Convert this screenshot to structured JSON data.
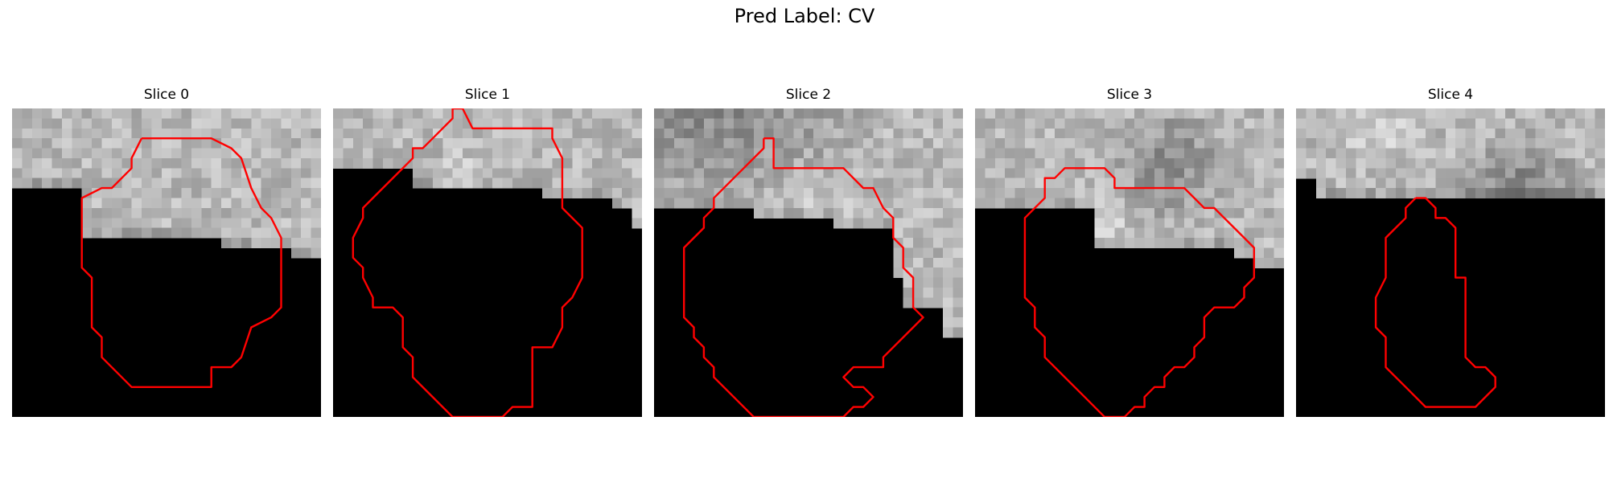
{
  "figure": {
    "title": "Pred Label: CV",
    "contour_color": "#ff0000",
    "panels": [
      {
        "title": "Slice 0",
        "seed": 11,
        "mask_cols": [
          8,
          8,
          8,
          8,
          8,
          8,
          8,
          13,
          13,
          13,
          13,
          13,
          13,
          13,
          13,
          13,
          13,
          13,
          13,
          13,
          13,
          14,
          14,
          14,
          14,
          14,
          14,
          14,
          15,
          15,
          15
        ],
        "blobs": [],
        "contour": [
          [
            13,
            3
          ],
          [
            20,
            3
          ],
          [
            22,
            4
          ],
          [
            23,
            5
          ],
          [
            24,
            8
          ],
          [
            25,
            10
          ],
          [
            26,
            11
          ],
          [
            27,
            13
          ],
          [
            27,
            20
          ],
          [
            26,
            21
          ],
          [
            24,
            22
          ],
          [
            23,
            25
          ],
          [
            22,
            26
          ],
          [
            20,
            26
          ],
          [
            20,
            28
          ],
          [
            12,
            28
          ],
          [
            9,
            25
          ],
          [
            9,
            23
          ],
          [
            8,
            22
          ],
          [
            8,
            17
          ],
          [
            7,
            16
          ],
          [
            7,
            9
          ],
          [
            9,
            8
          ],
          [
            10,
            8
          ],
          [
            12,
            6
          ],
          [
            12,
            5
          ],
          [
            13,
            3
          ]
        ]
      },
      {
        "title": "Slice 1",
        "seed": 23,
        "mask_cols": [
          6,
          6,
          6,
          6,
          6,
          6,
          6,
          6,
          8,
          8,
          8,
          8,
          8,
          8,
          8,
          8,
          8,
          8,
          8,
          8,
          8,
          9,
          9,
          9,
          9,
          9,
          9,
          9,
          10,
          10,
          12
        ],
        "blobs": [
          {
            "x": 13,
            "y": 8,
            "r": 5,
            "d": 35
          }
        ],
        "contour": [
          [
            12,
            0
          ],
          [
            13,
            0
          ],
          [
            14,
            2
          ],
          [
            22,
            2
          ],
          [
            22,
            3
          ],
          [
            23,
            5
          ],
          [
            23,
            10
          ],
          [
            25,
            12
          ],
          [
            25,
            17
          ],
          [
            24,
            19
          ],
          [
            23,
            20
          ],
          [
            23,
            22
          ],
          [
            22,
            24
          ],
          [
            20,
            24
          ],
          [
            20,
            30
          ],
          [
            18,
            30
          ],
          [
            17,
            31
          ],
          [
            12,
            31
          ],
          [
            8,
            27
          ],
          [
            8,
            25
          ],
          [
            7,
            24
          ],
          [
            7,
            21
          ],
          [
            6,
            20
          ],
          [
            4,
            20
          ],
          [
            4,
            19
          ],
          [
            3,
            17
          ],
          [
            3,
            16
          ],
          [
            2,
            15
          ],
          [
            2,
            13
          ],
          [
            3,
            11
          ],
          [
            3,
            10
          ],
          [
            4,
            9
          ],
          [
            8,
            5
          ],
          [
            8,
            4
          ],
          [
            9,
            4
          ],
          [
            10,
            3
          ],
          [
            12,
            1
          ],
          [
            12,
            0
          ]
        ]
      },
      {
        "title": "Slice 2",
        "seed": 37,
        "mask_cols": [
          10,
          10,
          10,
          10,
          10,
          10,
          10,
          10,
          10,
          10,
          11,
          11,
          11,
          11,
          11,
          11,
          11,
          11,
          12,
          12,
          12,
          12,
          12,
          12,
          17,
          20,
          20,
          20,
          20,
          23,
          23
        ],
        "blobs": [
          {
            "x": 6,
            "y": -4,
            "r": 18,
            "d": -60
          },
          {
            "x": 14,
            "y": 9,
            "r": 6,
            "d": 25
          }
        ],
        "contour": [
          [
            11,
            3
          ],
          [
            12,
            3
          ],
          [
            12,
            6
          ],
          [
            19,
            6
          ],
          [
            21,
            8
          ],
          [
            22,
            8
          ],
          [
            23,
            10
          ],
          [
            24,
            11
          ],
          [
            24,
            13
          ],
          [
            25,
            14
          ],
          [
            25,
            16
          ],
          [
            26,
            17
          ],
          [
            26,
            20
          ],
          [
            27,
            21
          ],
          [
            26,
            22
          ],
          [
            23,
            25
          ],
          [
            23,
            26
          ],
          [
            20,
            26
          ],
          [
            19,
            27
          ],
          [
            20,
            28
          ],
          [
            21,
            28
          ],
          [
            22,
            29
          ],
          [
            21,
            30
          ],
          [
            20,
            30
          ],
          [
            19,
            31
          ],
          [
            10,
            31
          ],
          [
            6,
            27
          ],
          [
            6,
            26
          ],
          [
            5,
            25
          ],
          [
            5,
            24
          ],
          [
            4,
            23
          ],
          [
            4,
            22
          ],
          [
            3,
            21
          ],
          [
            3,
            14
          ],
          [
            5,
            12
          ],
          [
            5,
            11
          ],
          [
            6,
            10
          ],
          [
            6,
            9
          ],
          [
            8,
            7
          ],
          [
            9,
            6
          ],
          [
            10,
            5
          ],
          [
            11,
            4
          ],
          [
            11,
            3
          ]
        ]
      },
      {
        "title": "Slice 3",
        "seed": 53,
        "mask_cols": [
          10,
          10,
          10,
          10,
          10,
          10,
          10,
          10,
          10,
          10,
          10,
          10,
          14,
          14,
          14,
          14,
          14,
          14,
          14,
          14,
          14,
          14,
          14,
          14,
          14,
          14,
          15,
          15,
          16,
          16,
          16
        ],
        "blobs": [
          {
            "x": 19,
            "y": 5,
            "r": 7,
            "d": -55
          },
          {
            "x": 12,
            "y": 11,
            "r": 4,
            "d": 30
          }
        ],
        "contour": [
          [
            10,
            6
          ],
          [
            13,
            6
          ],
          [
            14,
            7
          ],
          [
            14,
            8
          ],
          [
            21,
            8
          ],
          [
            23,
            10
          ],
          [
            24,
            10
          ],
          [
            25,
            11
          ],
          [
            26,
            12
          ],
          [
            27,
            13
          ],
          [
            28,
            14
          ],
          [
            28,
            17
          ],
          [
            27,
            18
          ],
          [
            27,
            19
          ],
          [
            26,
            20
          ],
          [
            24,
            20
          ],
          [
            23,
            21
          ],
          [
            23,
            23
          ],
          [
            22,
            24
          ],
          [
            22,
            25
          ],
          [
            21,
            26
          ],
          [
            20,
            26
          ],
          [
            19,
            27
          ],
          [
            19,
            28
          ],
          [
            18,
            28
          ],
          [
            17,
            29
          ],
          [
            17,
            30
          ],
          [
            16,
            30
          ],
          [
            15,
            31
          ],
          [
            13,
            31
          ],
          [
            11,
            29
          ],
          [
            9,
            27
          ],
          [
            7,
            25
          ],
          [
            7,
            23
          ],
          [
            6,
            22
          ],
          [
            6,
            20
          ],
          [
            5,
            19
          ],
          [
            5,
            17
          ],
          [
            5,
            11
          ],
          [
            6,
            10
          ],
          [
            7,
            9
          ],
          [
            7,
            7
          ],
          [
            8,
            7
          ],
          [
            9,
            6
          ],
          [
            10,
            6
          ]
        ]
      },
      {
        "title": "Slice 4",
        "seed": 71,
        "mask_cols": [
          7,
          7,
          9,
          9,
          9,
          9,
          9,
          9,
          9,
          9,
          9,
          9,
          9,
          9,
          9,
          9,
          9,
          9,
          9,
          9,
          9,
          9,
          9,
          9,
          9,
          9,
          9,
          9,
          9,
          9,
          9
        ],
        "blobs": [
          {
            "x": 22,
            "y": 9,
            "r": 8,
            "d": -70
          },
          {
            "x": 14,
            "y": 12,
            "r": 4,
            "d": -35
          },
          {
            "x": 8,
            "y": 1,
            "r": 6,
            "d": 25
          }
        ],
        "contour": [
          [
            12,
            9
          ],
          [
            13,
            9
          ],
          [
            14,
            10
          ],
          [
            14,
            11
          ],
          [
            15,
            11
          ],
          [
            16,
            12
          ],
          [
            16,
            17
          ],
          [
            17,
            17
          ],
          [
            17,
            20
          ],
          [
            17,
            25
          ],
          [
            18,
            26
          ],
          [
            19,
            26
          ],
          [
            20,
            27
          ],
          [
            20,
            28
          ],
          [
            18,
            30
          ],
          [
            13,
            30
          ],
          [
            11,
            28
          ],
          [
            9,
            26
          ],
          [
            9,
            23
          ],
          [
            8,
            22
          ],
          [
            8,
            19
          ],
          [
            9,
            17
          ],
          [
            9,
            13
          ],
          [
            10,
            12
          ],
          [
            11,
            11
          ],
          [
            11,
            10
          ],
          [
            12,
            9
          ]
        ]
      }
    ]
  }
}
